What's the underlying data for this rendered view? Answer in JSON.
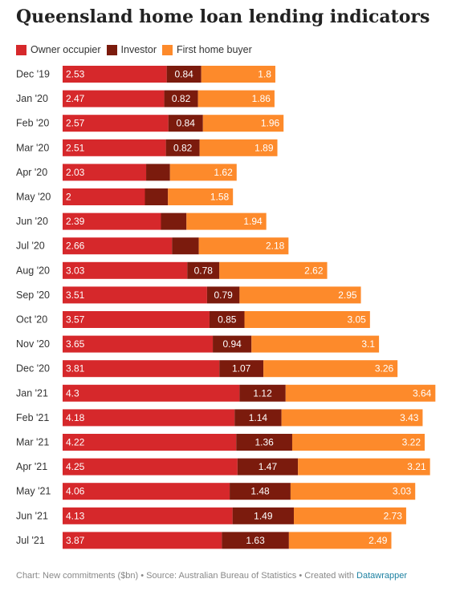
{
  "title": "Queensland home loan lending indicators",
  "legend": [
    {
      "label": "Owner occupier",
      "color": "#d6282b"
    },
    {
      "label": "Investor",
      "color": "#7b1b0d"
    },
    {
      "label": "First home buyer",
      "color": "#fd8a2b"
    }
  ],
  "footer": {
    "text": "Chart: New commitments ($bn) • Source: Australian Bureau of Statistics • Created with ",
    "link": "Datawrapper"
  },
  "chart_data": {
    "type": "bar",
    "orientation": "horizontal",
    "stacked": true,
    "categories": [
      "Dec '19",
      "Jan '20",
      "Feb '20",
      "Mar '20",
      "Apr '20",
      "May '20",
      "Jun '20",
      "Jul '20",
      "Aug '20",
      "Sep '20",
      "Oct '20",
      "Nov '20",
      "Dec '20",
      "Jan '21",
      "Feb '21",
      "Mar '21",
      "Apr '21",
      "May '21",
      "Jun '21",
      "Jul '21"
    ],
    "series": [
      {
        "name": "Owner occupier",
        "color": "#d6282b",
        "values": [
          2.53,
          2.47,
          2.57,
          2.51,
          2.03,
          2,
          2.39,
          2.66,
          3.03,
          3.51,
          3.57,
          3.65,
          3.81,
          4.3,
          4.18,
          4.22,
          4.25,
          4.06,
          4.13,
          3.87
        ],
        "labels": [
          "2.53",
          "2.47",
          "2.57",
          "2.51",
          "2.03",
          "2",
          "2.39",
          "2.66",
          "3.03",
          "3.51",
          "3.57",
          "3.65",
          "3.81",
          "4.3",
          "4.18",
          "4.22",
          "4.25",
          "4.06",
          "4.13",
          "3.87"
        ]
      },
      {
        "name": "Investor",
        "color": "#7b1b0d",
        "values": [
          0.84,
          0.82,
          0.84,
          0.82,
          0.58,
          0.56,
          0.62,
          0.65,
          0.78,
          0.79,
          0.85,
          0.94,
          1.07,
          1.12,
          1.14,
          1.36,
          1.47,
          1.48,
          1.49,
          1.63
        ],
        "labels": [
          "0.84",
          "0.82",
          "0.84",
          "0.82",
          "",
          "",
          "",
          "",
          "0.78",
          "0.79",
          "0.85",
          "0.94",
          "1.07",
          "1.12",
          "1.14",
          "1.36",
          "1.47",
          "1.48",
          "1.49",
          "1.63"
        ]
      },
      {
        "name": "First home buyer",
        "color": "#fd8a2b",
        "values": [
          1.8,
          1.86,
          1.96,
          1.89,
          1.62,
          1.58,
          1.94,
          2.18,
          2.62,
          2.95,
          3.05,
          3.1,
          3.26,
          3.64,
          3.43,
          3.22,
          3.21,
          3.03,
          2.73,
          2.49
        ],
        "labels": [
          "1.8",
          "1.86",
          "1.96",
          "1.89",
          "1.62",
          "1.58",
          "1.94",
          "2.18",
          "2.62",
          "2.95",
          "3.05",
          "3.1",
          "3.26",
          "3.64",
          "3.43",
          "3.22",
          "3.21",
          "3.03",
          "2.73",
          "2.49"
        ]
      }
    ],
    "xlim": [
      0,
      9.06
    ],
    "grid": false,
    "legend_position": "top-left"
  }
}
